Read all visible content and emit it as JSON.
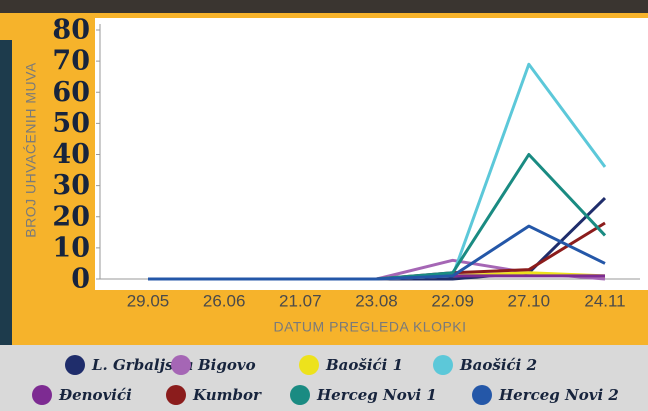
{
  "chart_data": {
    "type": "line",
    "y_label": "BROJ UHVAĆENIH MUVA",
    "x_label": "DATUM PREGLEDA KLOPKI",
    "categories": [
      "29.05",
      "26.06",
      "21.07",
      "23.08",
      "22.09",
      "27.10",
      "24.11"
    ],
    "ylim": [
      0,
      80
    ],
    "yticks": [
      0,
      10,
      20,
      30,
      40,
      50,
      60,
      70,
      80
    ],
    "grid": false,
    "series": [
      {
        "name": "L. Grbaljska",
        "color": "#1f2d6b",
        "values": [
          0,
          0,
          0,
          0,
          0,
          2,
          26
        ]
      },
      {
        "name": "Bigovo",
        "color": "#a566b5",
        "values": [
          0,
          0,
          0,
          0,
          6,
          2,
          0
        ]
      },
      {
        "name": "Baošići 1",
        "color": "#ede21c",
        "values": [
          0,
          0,
          0,
          0,
          1,
          2,
          1
        ]
      },
      {
        "name": "Baošići 2",
        "color": "#5cc8d9",
        "values": [
          0,
          0,
          0,
          0,
          1,
          69,
          36
        ]
      },
      {
        "name": "Đenovići",
        "color": "#7d2b92",
        "values": [
          0,
          0,
          0,
          0,
          1,
          1,
          1
        ]
      },
      {
        "name": "Kumbor",
        "color": "#8b1c1c",
        "values": [
          0,
          0,
          0,
          0,
          2,
          3,
          18
        ]
      },
      {
        "name": "Herceg Novi 1",
        "color": "#1a8b82",
        "values": [
          0,
          0,
          0,
          0,
          2,
          40,
          14
        ]
      },
      {
        "name": "Herceg Novi 2",
        "color": "#2457a8",
        "values": [
          0,
          0,
          0,
          0,
          1,
          17,
          5
        ]
      }
    ]
  }
}
